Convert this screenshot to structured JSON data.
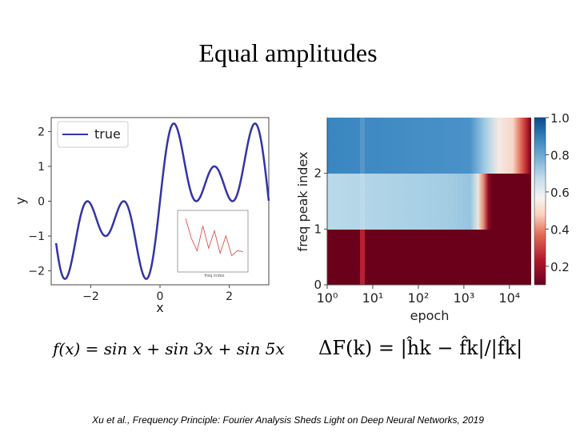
{
  "title": "Equal amplitudes",
  "formula_left": "f(x) = sin x + sin 3x + sin 5x",
  "formula_right": "ΔF(k) = |ĥk − f̂k|/|f̂k|",
  "citation": {
    "authors": "Xu et al.",
    "text": ", Frequency Principle: Fourier Analysis Sheds Light on Deep Neural Networks, 2019"
  },
  "chart_data": [
    {
      "type": "line",
      "function": "sin(x) + sin(3x) + sin(5x)",
      "xlim": [
        -3.14159,
        3.14159
      ],
      "ylim": [
        -2.4,
        2.4
      ],
      "xticks": [
        -2,
        0,
        2
      ],
      "xtick_labels": [
        "−2",
        "0",
        "2"
      ],
      "yticks": [
        -2,
        -1,
        0,
        1,
        2
      ],
      "ytick_labels": [
        "−2",
        "−1",
        "0",
        "1",
        "2"
      ],
      "xlabel": "x",
      "ylabel": "y",
      "legend": {
        "position": "top-left",
        "entries": [
          "true"
        ]
      },
      "series": [
        {
          "name": "true",
          "color": "#3333aa"
        }
      ]
    },
    {
      "type": "line",
      "inset": true,
      "ylabel": "",
      "xlabel": "freq index",
      "color": "#e05050",
      "x": [
        1,
        2,
        3,
        4,
        5,
        6,
        7,
        8,
        9,
        10,
        11
      ],
      "values": [
        0.95,
        0.55,
        0.3,
        0.8,
        0.35,
        0.7,
        0.25,
        0.6,
        0.2,
        0.3,
        0.28
      ]
    },
    {
      "type": "heatmap",
      "xlabel": "epoch",
      "ylabel": "freq peak index",
      "xscale": "log",
      "xlim": [
        1,
        30000
      ],
      "ylim": [
        0,
        3
      ],
      "xtick_labels": [
        "10⁰",
        "10¹",
        "10²",
        "10³",
        "10⁴"
      ],
      "ytick_labels": [
        "0",
        "1",
        "2"
      ],
      "rows": [
        {
          "index": 3,
          "drop_epoch": 3500
        },
        {
          "index": 2,
          "drop_epoch": 1200
        },
        {
          "index": 1,
          "drop_epoch": 1
        }
      ],
      "colorbar": {
        "min": 0.1,
        "max": 1.0,
        "ticks": [
          "0.2",
          "0.4",
          "0.6",
          "0.8",
          "1.0"
        ],
        "colormap": "RdBu"
      },
      "colors": {
        "dark_red": "#6a0019",
        "blue": "#3a86c0",
        "light_blue": "#a9d0e6"
      }
    }
  ]
}
